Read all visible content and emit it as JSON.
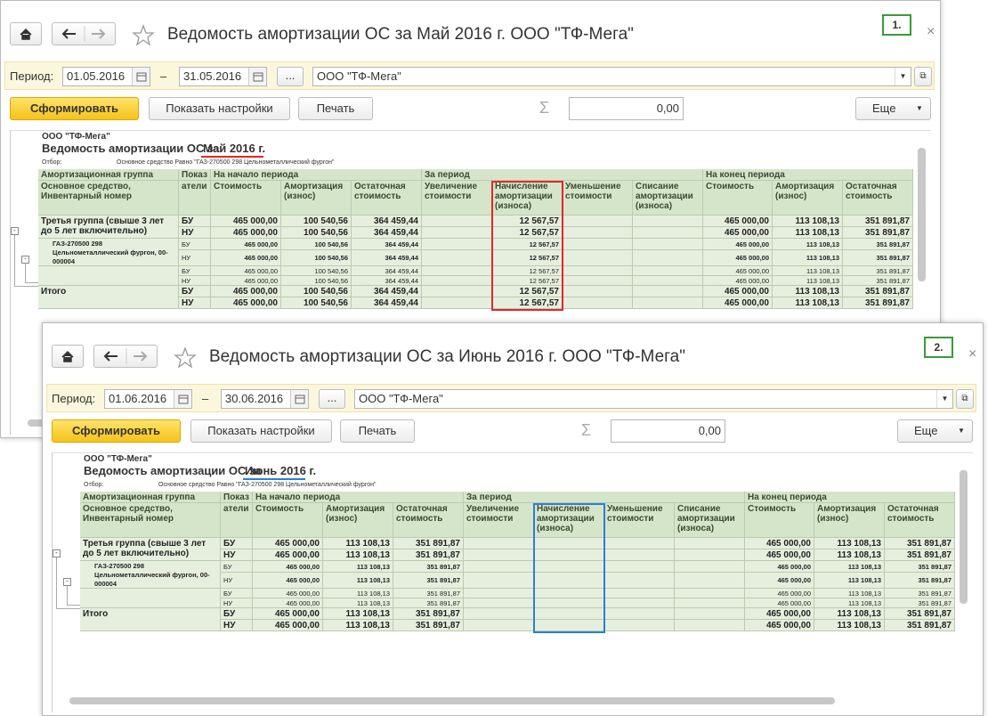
{
  "windows": [
    {
      "badge": "1.",
      "title": "Ведомость амортизации ОС за Май 2016 г. ООО \"ТФ-Мега\"",
      "accent": "#e3262a",
      "period_label": "Период:",
      "date_from": "01.05.2016",
      "dash": "–",
      "date_to": "31.05.2016",
      "ellipsis": "...",
      "company": "ООО \"ТФ-Мега\"",
      "buttons": {
        "generate": "Сформировать",
        "settings": "Показать настройки",
        "print": "Печать",
        "more": "Еще"
      },
      "sum": "0,00",
      "report": {
        "org": "ООО \"ТФ-Мега\"",
        "title": "Ведомость амортизации ОС за",
        "title_period": "Май 2016 г.",
        "filter_label": "Отбор:",
        "filter": "Основное средство Равно \"ГАЗ-270500 298 Цельнометаллический фургон\"",
        "header_top": [
          "Амортизационная группа",
          "Показ",
          "На начало периода",
          "За период",
          "На конец периода"
        ],
        "header": [
          "Основное средство, Инвентарный номер",
          "атели",
          "Стоимость",
          "Амортизация (износ)",
          "Остаточная стоимость",
          "Увеличение стоимости",
          "Начисление амортизации (износа)",
          "Уменьшение стоимости",
          "Списание амортизации (износа)",
          "Стоимость",
          "Амортизация (износ)",
          "Остаточная стоимость"
        ],
        "groups": [
          {
            "label": "Третья группа (свыше 3 лет до 5 лет включительно)",
            "lines": [
              {
                "indicator": "БУ",
                "values": [
                  "465 000,00",
                  "100 540,56",
                  "364 459,44",
                  null,
                  "12 567,57",
                  null,
                  null,
                  "465 000,00",
                  "113 108,13",
                  "351 891,87"
                ]
              },
              {
                "indicator": "НУ",
                "values": [
                  "465 000,00",
                  "100 540,56",
                  "364 459,44",
                  null,
                  "12 567,57",
                  null,
                  null,
                  "465 000,00",
                  "113 108,13",
                  "351 891,87"
                ]
              }
            ]
          },
          {
            "label": "ГАЗ-270500 298 Цельнометаллический фургон, 00-000004",
            "lines": [
              {
                "indicator": "БУ",
                "values": [
                  "465 000,00",
                  "100 540,56",
                  "364 459,44",
                  null,
                  "12 567,57",
                  null,
                  null,
                  "465 000,00",
                  "113 108,13",
                  "351 891,87"
                ]
              },
              {
                "indicator": "НУ",
                "values": [
                  "465 000,00",
                  "100 540,56",
                  "364 459,44",
                  null,
                  "12 567,57",
                  null,
                  null,
                  "465 000,00",
                  "113 108,13",
                  "351 891,87"
                ]
              }
            ]
          },
          {
            "lines": [
              {
                "indicator": "БУ",
                "values": [
                  "465 000,00",
                  "100 540,56",
                  "364 459,44",
                  null,
                  "12 567,57",
                  null,
                  null,
                  "465 000,00",
                  "113 108,13",
                  "351 891,87"
                ]
              },
              {
                "indicator": "НУ",
                "values": [
                  "465 000,00",
                  "100 540,56",
                  "364 459,44",
                  null,
                  "12 567,57",
                  null,
                  null,
                  "465 000,00",
                  "113 108,13",
                  "351 891,87"
                ]
              }
            ]
          },
          {
            "label": "Итого",
            "lines": [
              {
                "indicator": "БУ",
                "values": [
                  "465 000,00",
                  "100 540,56",
                  "364 459,44",
                  null,
                  "12 567,57",
                  null,
                  null,
                  "465 000,00",
                  "113 108,13",
                  "351 891,87"
                ]
              },
              {
                "indicator": "НУ",
                "values": [
                  "465 000,00",
                  "100 540,56",
                  "364 459,44",
                  null,
                  "12 567,57",
                  null,
                  null,
                  "465 000,00",
                  "113 108,13",
                  "351 891,87"
                ]
              }
            ]
          }
        ]
      }
    },
    {
      "badge": "2.",
      "title": "Ведомость амортизации ОС за Июнь 2016 г. ООО \"ТФ-Мега\"",
      "accent": "#2a7fd4",
      "period_label": "Период:",
      "date_from": "01.06.2016",
      "dash": "–",
      "date_to": "30.06.2016",
      "ellipsis": "...",
      "company": "ООО \"ТФ-Мега\"",
      "buttons": {
        "generate": "Сформировать",
        "settings": "Показать настройки",
        "print": "Печать",
        "more": "Еще"
      },
      "sum": "0,00",
      "report": {
        "org": "ООО \"ТФ-Мега\"",
        "title": "Ведомость амортизации ОС за",
        "title_period": "Июнь 2016 г.",
        "filter_label": "Отбор:",
        "filter": "Основное средство Равно \"ГАЗ-270500 298 Цельнометаллический фургон\"",
        "header_top": [
          "Амортизационная группа",
          "Показ",
          "На начало периода",
          "За период",
          "На конец периода"
        ],
        "header": [
          "Основное средство, Инвентарный номер",
          "атели",
          "Стоимость",
          "Амортизация (износ)",
          "Остаточная стоимость",
          "Увеличение стоимости",
          "Начисление амортизации (износа)",
          "Уменьшение стоимости",
          "Списание амортизации (износа)",
          "Стоимость",
          "Амортизация (износ)",
          "Остаточная стоимость"
        ],
        "groups": [
          {
            "label": "Третья группа (свыше 3 лет до 5 лет включительно)",
            "lines": [
              {
                "indicator": "БУ",
                "values": [
                  "465 000,00",
                  "113 108,13",
                  "351 891,87",
                  null,
                  null,
                  null,
                  null,
                  "465 000,00",
                  "113 108,13",
                  "351 891,87"
                ]
              },
              {
                "indicator": "НУ",
                "values": [
                  "465 000,00",
                  "113 108,13",
                  "351 891,87",
                  null,
                  null,
                  null,
                  null,
                  "465 000,00",
                  "113 108,13",
                  "351 891,87"
                ]
              }
            ]
          },
          {
            "label": "ГАЗ-270500 298 Цельнометаллический фургон, 00-000004",
            "lines": [
              {
                "indicator": "БУ",
                "values": [
                  "465 000,00",
                  "113 108,13",
                  "351 891,87",
                  null,
                  null,
                  null,
                  null,
                  "465 000,00",
                  "113 108,13",
                  "351 891,87"
                ]
              },
              {
                "indicator": "НУ",
                "values": [
                  "465 000,00",
                  "113 108,13",
                  "351 891,87",
                  null,
                  null,
                  null,
                  null,
                  "465 000,00",
                  "113 108,13",
                  "351 891,87"
                ]
              }
            ]
          },
          {
            "lines": [
              {
                "indicator": "БУ",
                "values": [
                  "465 000,00",
                  "113 108,13",
                  "351 891,87",
                  null,
                  null,
                  null,
                  null,
                  "465 000,00",
                  "113 108,13",
                  "351 891,87"
                ]
              },
              {
                "indicator": "НУ",
                "values": [
                  "465 000,00",
                  "113 108,13",
                  "351 891,87",
                  null,
                  null,
                  null,
                  null,
                  "465 000,00",
                  "113 108,13",
                  "351 891,87"
                ]
              }
            ]
          },
          {
            "label": "Итого",
            "lines": [
              {
                "indicator": "БУ",
                "values": [
                  "465 000,00",
                  "113 108,13",
                  "351 891,87",
                  null,
                  null,
                  null,
                  null,
                  "465 000,00",
                  "113 108,13",
                  "351 891,87"
                ]
              },
              {
                "indicator": "НУ",
                "values": [
                  "465 000,00",
                  "113 108,13",
                  "351 891,87",
                  null,
                  null,
                  null,
                  null,
                  "465 000,00",
                  "113 108,13",
                  "351 891,87"
                ]
              }
            ]
          }
        ]
      }
    }
  ]
}
